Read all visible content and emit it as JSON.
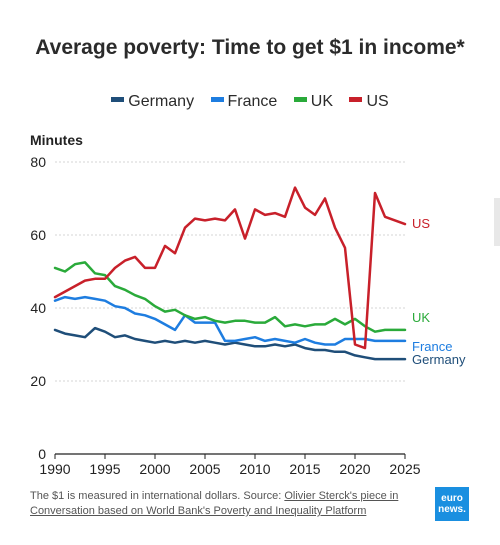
{
  "title": "Average poverty: Time to get $1 in income*",
  "legend": {
    "germany": "Germany",
    "france": "France",
    "uk": "UK",
    "us": "US"
  },
  "footer": {
    "note": "The $1 is measured in international dollars. Source: ",
    "link_text": "Olivier Sterck's piece in Conversation based on World Bank's Poverty and Inequality Platform"
  },
  "logo": {
    "line1": "euro",
    "line2": "news."
  },
  "chart_data": {
    "type": "line",
    "title": "Average poverty: Time to get $1 in income*",
    "ylabel": "Minutes",
    "xlabel": "",
    "xlim": [
      1990,
      2025
    ],
    "ylim": [
      0,
      80
    ],
    "xticks": [
      1990,
      1995,
      2000,
      2005,
      2010,
      2015,
      2020,
      2025
    ],
    "yticks": [
      0,
      20,
      40,
      60,
      80
    ],
    "grid": "horizontal",
    "legend_position": "top",
    "series": [
      {
        "name": "Germany",
        "color": "#1f4e79",
        "end_label": "Germany",
        "x": [
          1990,
          1991,
          1992,
          1993,
          1994,
          1995,
          1996,
          1997,
          1998,
          1999,
          2000,
          2001,
          2002,
          2003,
          2004,
          2005,
          2006,
          2007,
          2008,
          2009,
          2010,
          2011,
          2012,
          2013,
          2014,
          2015,
          2016,
          2017,
          2018,
          2019,
          2020,
          2021,
          2022,
          2023,
          2024,
          2025
        ],
        "y": [
          34,
          33,
          32.5,
          32,
          34.5,
          33.5,
          32,
          32.5,
          31.5,
          31,
          30.5,
          31,
          30.5,
          31,
          30.5,
          31,
          30.5,
          30,
          30.5,
          30,
          29.5,
          29.5,
          30,
          29.5,
          30,
          29,
          28.5,
          28.5,
          28,
          28,
          27,
          26.5,
          26,
          26,
          26,
          26
        ]
      },
      {
        "name": "France",
        "color": "#1e7de0",
        "end_label": "France",
        "x": [
          1990,
          1991,
          1992,
          1993,
          1994,
          1995,
          1996,
          1997,
          1998,
          1999,
          2000,
          2001,
          2002,
          2003,
          2004,
          2005,
          2006,
          2007,
          2008,
          2009,
          2010,
          2011,
          2012,
          2013,
          2014,
          2015,
          2016,
          2017,
          2018,
          2019,
          2020,
          2021,
          2022,
          2023,
          2024,
          2025
        ],
        "y": [
          42,
          43,
          42.5,
          43,
          42.5,
          42,
          40.5,
          40,
          38.5,
          38,
          37,
          35.5,
          34,
          38,
          36,
          36,
          36,
          31,
          31,
          31.5,
          32,
          31,
          31.5,
          31,
          30.5,
          31.5,
          30.5,
          30,
          30,
          31.5,
          31.5,
          31.5,
          31,
          31,
          31,
          31
        ]
      },
      {
        "name": "UK",
        "color": "#2aaa3a",
        "end_label": "UK",
        "x": [
          1990,
          1991,
          1992,
          1993,
          1994,
          1995,
          1996,
          1997,
          1998,
          1999,
          2000,
          2001,
          2002,
          2003,
          2004,
          2005,
          2006,
          2007,
          2008,
          2009,
          2010,
          2011,
          2012,
          2013,
          2014,
          2015,
          2016,
          2017,
          2018,
          2019,
          2020,
          2021,
          2022,
          2023,
          2024,
          2025
        ],
        "y": [
          51,
          50,
          52,
          52.5,
          49.5,
          49,
          46,
          45,
          43.5,
          42.5,
          40.5,
          39,
          39.5,
          38,
          37,
          37.5,
          36.5,
          36,
          36.5,
          36.5,
          36,
          36,
          37.5,
          35,
          35.5,
          35,
          35.5,
          35.5,
          37,
          35.5,
          37,
          35,
          33.5,
          34,
          34,
          34
        ]
      },
      {
        "name": "US",
        "color": "#c8202a",
        "end_label": "US",
        "x": [
          1990,
          1991,
          1992,
          1993,
          1994,
          1995,
          1996,
          1997,
          1998,
          1999,
          2000,
          2001,
          2002,
          2003,
          2004,
          2005,
          2006,
          2007,
          2008,
          2009,
          2010,
          2011,
          2012,
          2013,
          2014,
          2015,
          2016,
          2017,
          2018,
          2019,
          2020,
          2021,
          2022,
          2023,
          2024,
          2025
        ],
        "y": [
          43,
          44.5,
          46,
          47.5,
          48,
          48,
          51,
          53,
          54,
          51,
          51,
          57,
          55,
          62,
          64.5,
          64,
          64.5,
          64,
          67,
          59,
          67,
          65.5,
          66,
          65,
          73,
          67.5,
          65.5,
          70,
          62,
          56.5,
          30,
          29,
          71.5,
          65,
          64,
          63
        ]
      }
    ]
  }
}
